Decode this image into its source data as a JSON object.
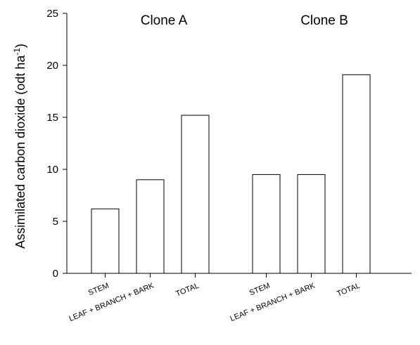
{
  "chart_data": {
    "type": "bar",
    "ylabel": "Assimilated carbon dioxide (odt ha",
    "ylabel_sup": "-1",
    "ylabel_close": ")",
    "ylim": [
      0,
      25
    ],
    "yticks": [
      "0",
      "5",
      "10",
      "15",
      "20",
      "25"
    ],
    "groups": [
      {
        "name": "Clone A",
        "categories": [
          "STEM",
          "LEAF + BRANCH + BARK",
          "TOTAL"
        ],
        "values": [
          6.2,
          9.0,
          15.2
        ]
      },
      {
        "name": "Clone B",
        "categories": [
          "STEM",
          "LEAF + BRANCH + BARK",
          "TOTAL"
        ],
        "values": [
          9.5,
          9.5,
          19.1
        ]
      }
    ],
    "bar_fill": "#ffffff",
    "bar_stroke": "#000000",
    "grid": false
  }
}
